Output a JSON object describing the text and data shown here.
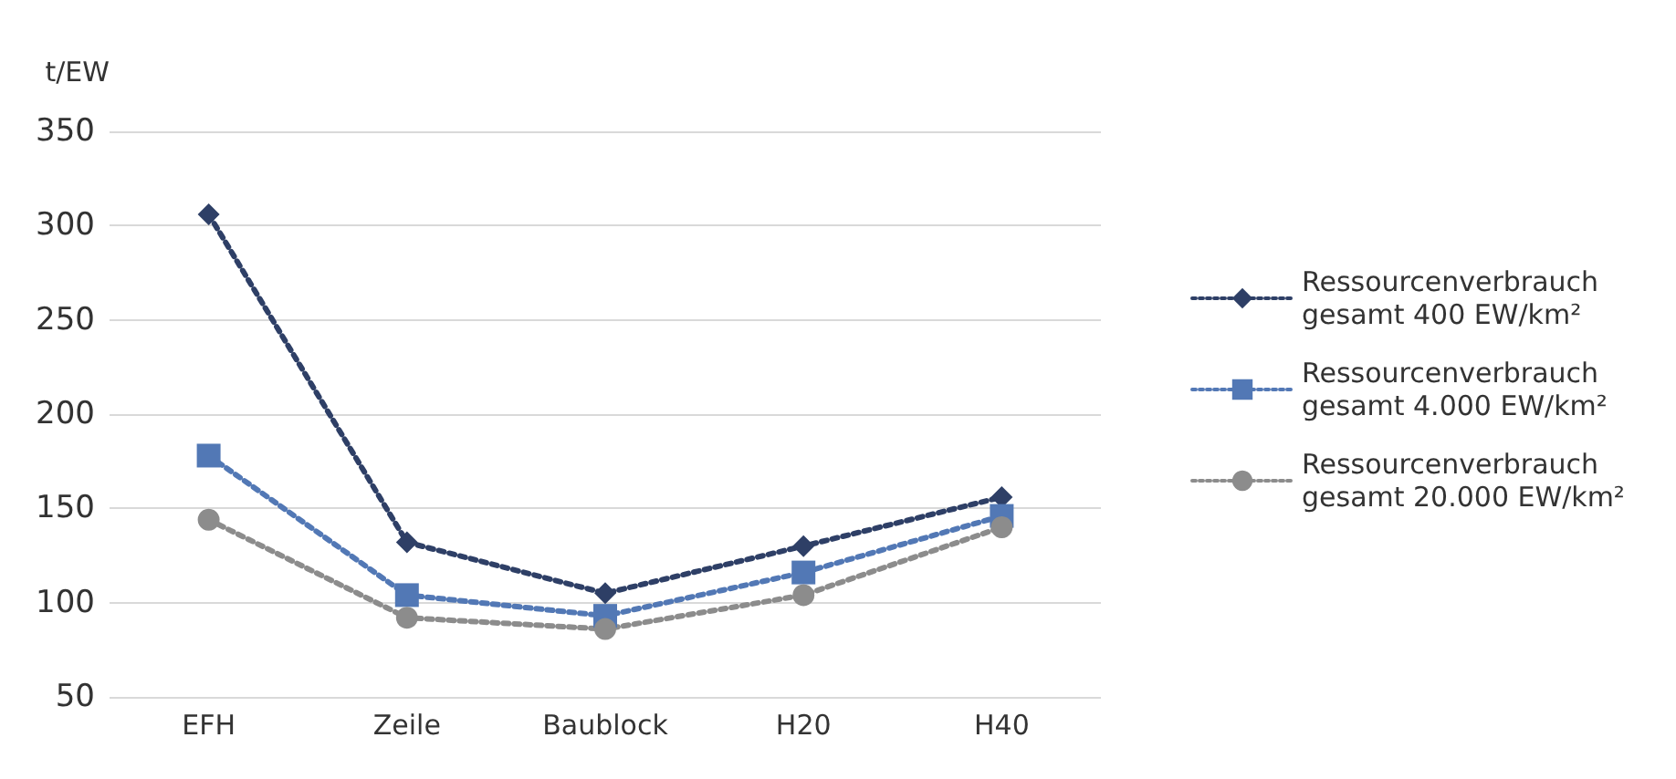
{
  "chart_data": {
    "type": "line",
    "ylabel": "t/EW",
    "categories": [
      "EFH",
      "Zeile",
      "Baublock",
      "H20",
      "H40"
    ],
    "series": [
      {
        "name": "Ressourcenverbrauch gesamt 400 EW/km²",
        "color": "#2e3f66",
        "marker": "diamond",
        "values": [
          306,
          132,
          105,
          130,
          156
        ]
      },
      {
        "name": "Ressourcenverbrauch gesamt 4.000 EW/km²",
        "color": "#5278b5",
        "marker": "square",
        "values": [
          178,
          104,
          93,
          116,
          146
        ]
      },
      {
        "name": "Ressourcenverbrauch gesamt 20.000 EW/km²",
        "color": "#8c8c8c",
        "marker": "circle",
        "values": [
          144,
          92,
          86,
          104,
          140
        ]
      }
    ],
    "ylim": [
      50,
      350
    ],
    "yticks": [
      50,
      100,
      150,
      200,
      250,
      300,
      350
    ],
    "grid": "y",
    "legend": "right",
    "line_style": "dotted"
  }
}
